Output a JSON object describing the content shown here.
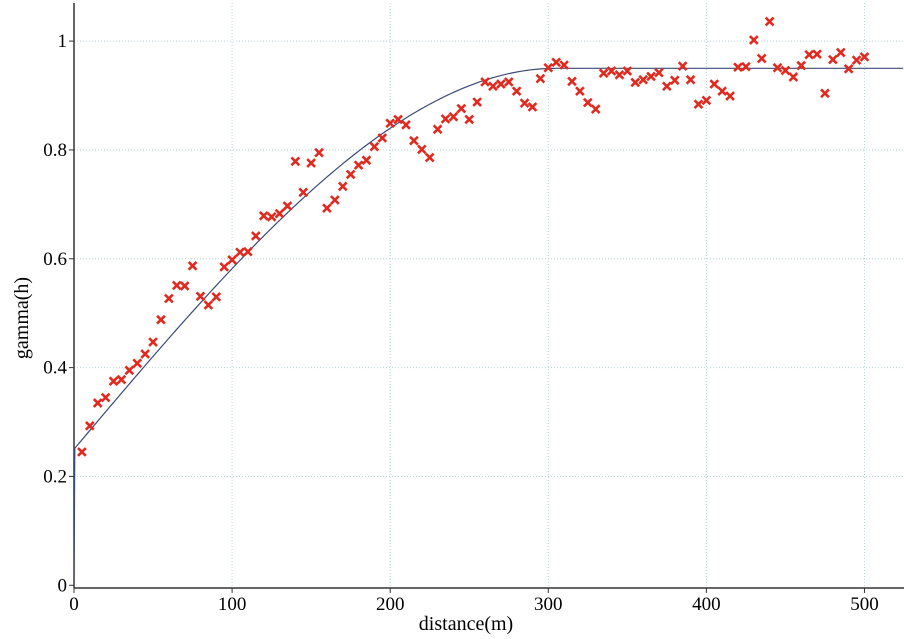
{
  "chart_data": {
    "type": "scatter",
    "xlabel": "distance(m)",
    "ylabel": "gamma(h)",
    "xlim": [
      0,
      525
    ],
    "ylim": [
      -0.005,
      1.07
    ],
    "grid": true,
    "x_ticks": [
      0,
      100,
      200,
      300,
      400,
      500
    ],
    "y_ticks": [
      0,
      0.2,
      0.4,
      0.6,
      0.8,
      1
    ],
    "x_tick_labels": [
      "0",
      "100",
      "200",
      "300",
      "400",
      "500"
    ],
    "y_tick_labels": [
      "0",
      "0.2",
      "0.4",
      "0.6",
      "0.8",
      "1"
    ],
    "colors": {
      "marker": "#e02a1f",
      "model_line": "#3c4a78",
      "axis": "#333333",
      "grid": "#b8d4d8"
    },
    "model_curve": {
      "kind": "spherical",
      "nugget": 0.25,
      "sill": 0.95,
      "range": 305,
      "x_max": 525
    },
    "points": [
      [
        5,
        0.245
      ],
      [
        10,
        0.293
      ],
      [
        15,
        0.335
      ],
      [
        20,
        0.345
      ],
      [
        25,
        0.375
      ],
      [
        30,
        0.378
      ],
      [
        35,
        0.395
      ],
      [
        40,
        0.408
      ],
      [
        45,
        0.425
      ],
      [
        50,
        0.447
      ],
      [
        55,
        0.488
      ],
      [
        60,
        0.527
      ],
      [
        65,
        0.551
      ],
      [
        70,
        0.55
      ],
      [
        75,
        0.587
      ],
      [
        80,
        0.531
      ],
      [
        85,
        0.515
      ],
      [
        90,
        0.53
      ],
      [
        95,
        0.585
      ],
      [
        100,
        0.598
      ],
      [
        105,
        0.612
      ],
      [
        110,
        0.613
      ],
      [
        115,
        0.642
      ],
      [
        120,
        0.679
      ],
      [
        125,
        0.677
      ],
      [
        130,
        0.683
      ],
      [
        135,
        0.697
      ],
      [
        140,
        0.779
      ],
      [
        145,
        0.722
      ],
      [
        150,
        0.776
      ],
      [
        155,
        0.795
      ],
      [
        160,
        0.693
      ],
      [
        165,
        0.708
      ],
      [
        170,
        0.733
      ],
      [
        175,
        0.755
      ],
      [
        180,
        0.772
      ],
      [
        185,
        0.781
      ],
      [
        190,
        0.806
      ],
      [
        195,
        0.822
      ],
      [
        200,
        0.849
      ],
      [
        205,
        0.856
      ],
      [
        210,
        0.846
      ],
      [
        215,
        0.817
      ],
      [
        220,
        0.801
      ],
      [
        225,
        0.786
      ],
      [
        230,
        0.838
      ],
      [
        235,
        0.857
      ],
      [
        240,
        0.861
      ],
      [
        245,
        0.876
      ],
      [
        250,
        0.856
      ],
      [
        255,
        0.888
      ],
      [
        260,
        0.925
      ],
      [
        265,
        0.917
      ],
      [
        270,
        0.921
      ],
      [
        275,
        0.925
      ],
      [
        280,
        0.908
      ],
      [
        285,
        0.886
      ],
      [
        290,
        0.879
      ],
      [
        295,
        0.931
      ],
      [
        300,
        0.951
      ],
      [
        305,
        0.961
      ],
      [
        310,
        0.956
      ],
      [
        315,
        0.926
      ],
      [
        320,
        0.908
      ],
      [
        325,
        0.887
      ],
      [
        330,
        0.875
      ],
      [
        335,
        0.941
      ],
      [
        340,
        0.945
      ],
      [
        345,
        0.938
      ],
      [
        350,
        0.945
      ],
      [
        355,
        0.924
      ],
      [
        360,
        0.929
      ],
      [
        365,
        0.935
      ],
      [
        370,
        0.942
      ],
      [
        375,
        0.917
      ],
      [
        380,
        0.928
      ],
      [
        385,
        0.954
      ],
      [
        390,
        0.929
      ],
      [
        395,
        0.884
      ],
      [
        400,
        0.891
      ],
      [
        405,
        0.921
      ],
      [
        410,
        0.908
      ],
      [
        415,
        0.899
      ],
      [
        420,
        0.952
      ],
      [
        425,
        0.953
      ],
      [
        430,
        1.002
      ],
      [
        435,
        0.968
      ],
      [
        440,
        1.036
      ],
      [
        445,
        0.951
      ],
      [
        450,
        0.946
      ],
      [
        455,
        0.934
      ],
      [
        460,
        0.955
      ],
      [
        465,
        0.975
      ],
      [
        470,
        0.976
      ],
      [
        475,
        0.904
      ],
      [
        480,
        0.966
      ],
      [
        485,
        0.979
      ],
      [
        490,
        0.949
      ],
      [
        495,
        0.965
      ],
      [
        500,
        0.971
      ]
    ]
  }
}
